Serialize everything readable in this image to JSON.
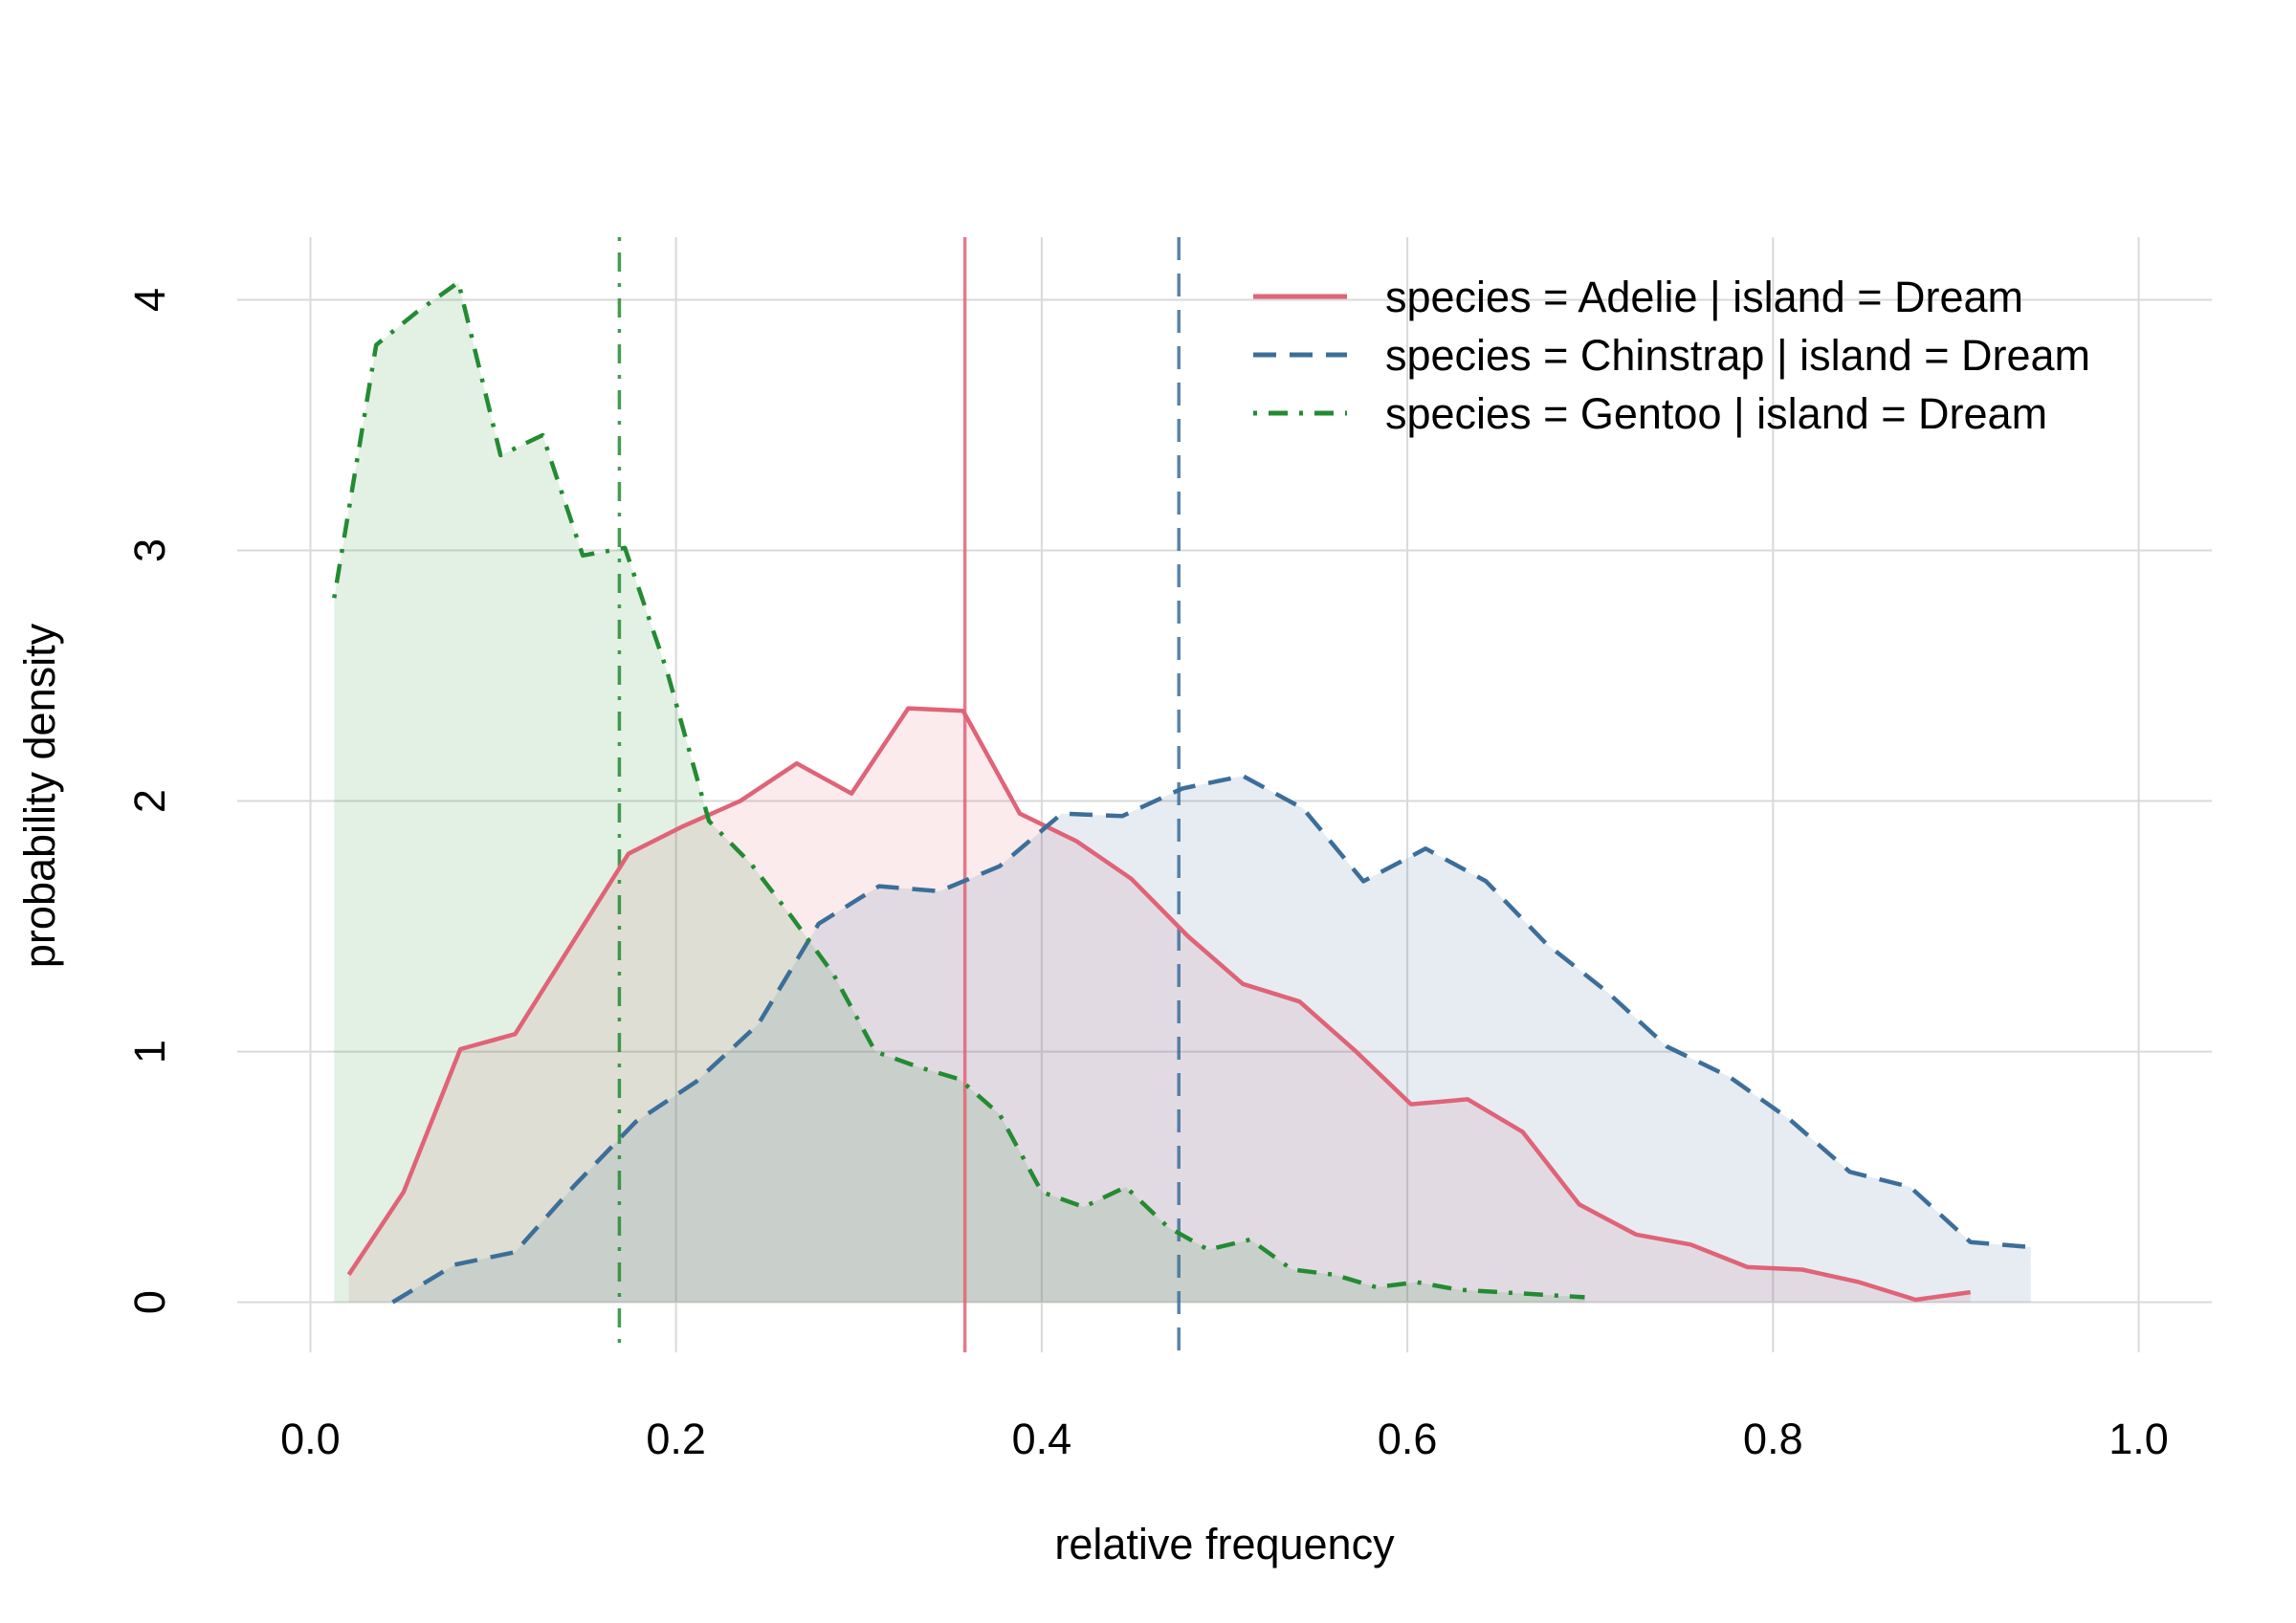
{
  "chart_data": {
    "type": "area",
    "xlabel": "relative frequency",
    "ylabel": "probability density",
    "xlim": [
      -0.04,
      1.04
    ],
    "ylim": [
      -0.2,
      4.25
    ],
    "xticks": [
      0.0,
      0.2,
      0.4,
      0.6,
      0.8,
      1.0
    ],
    "xtick_labels": [
      "0.0",
      "0.2",
      "0.4",
      "0.6",
      "0.8",
      "1.0"
    ],
    "yticks": [
      0,
      1,
      2,
      3,
      4
    ],
    "ytick_labels": [
      "0",
      "1",
      "2",
      "3",
      "4"
    ],
    "grid": true,
    "legend_position": "top-right",
    "series": [
      {
        "name": "species = Adelie | island = Dream",
        "color": "#E06377",
        "line_style": "solid",
        "mean": 0.358,
        "x": [
          0.021,
          0.051,
          0.082,
          0.112,
          0.143,
          0.174,
          0.204,
          0.235,
          0.266,
          0.296,
          0.327,
          0.357,
          0.388,
          0.419,
          0.449,
          0.48,
          0.51,
          0.541,
          0.572,
          0.602,
          0.633,
          0.663,
          0.694,
          0.725,
          0.755,
          0.786,
          0.816,
          0.847,
          0.878,
          0.908
        ],
        "y": [
          0.11,
          0.44,
          1.01,
          1.07,
          1.43,
          1.79,
          1.9,
          2.0,
          2.15,
          2.03,
          2.37,
          2.36,
          1.95,
          1.84,
          1.69,
          1.46,
          1.27,
          1.2,
          1.0,
          0.79,
          0.81,
          0.68,
          0.39,
          0.27,
          0.23,
          0.14,
          0.13,
          0.08,
          0.01,
          0.04
        ]
      },
      {
        "name": "species = Chinstrap | island = Dream",
        "color": "#3C6E9A",
        "line_style": "dashed",
        "mean": 0.475,
        "x": [
          0.045,
          0.079,
          0.112,
          0.145,
          0.178,
          0.211,
          0.245,
          0.278,
          0.311,
          0.344,
          0.377,
          0.411,
          0.444,
          0.477,
          0.51,
          0.543,
          0.576,
          0.61,
          0.643,
          0.676,
          0.709,
          0.742,
          0.776,
          0.809,
          0.842,
          0.875,
          0.908,
          0.941
        ],
        "y": [
          0.0,
          0.15,
          0.2,
          0.47,
          0.72,
          0.88,
          1.11,
          1.51,
          1.66,
          1.64,
          1.74,
          1.95,
          1.94,
          2.05,
          2.1,
          1.97,
          1.68,
          1.81,
          1.68,
          1.43,
          1.24,
          1.02,
          0.9,
          0.73,
          0.52,
          0.46,
          0.24,
          0.22
        ]
      },
      {
        "name": "species = Gentoo | island = Dream",
        "color": "#238B32",
        "line_style": "dotdash",
        "mean": 0.169,
        "x": [
          0.013,
          0.036,
          0.058,
          0.081,
          0.104,
          0.127,
          0.149,
          0.172,
          0.195,
          0.218,
          0.241,
          0.263,
          0.286,
          0.309,
          0.332,
          0.355,
          0.377,
          0.4,
          0.423,
          0.446,
          0.469,
          0.491,
          0.514,
          0.537,
          0.56,
          0.583,
          0.605,
          0.628,
          0.651,
          0.674,
          0.697
        ],
        "y": [
          2.81,
          3.82,
          3.95,
          4.07,
          3.38,
          3.46,
          2.98,
          3.01,
          2.52,
          1.92,
          1.75,
          1.54,
          1.31,
          1.0,
          0.94,
          0.89,
          0.75,
          0.44,
          0.38,
          0.46,
          0.3,
          0.21,
          0.25,
          0.13,
          0.11,
          0.06,
          0.08,
          0.05,
          0.04,
          0.03,
          0.02
        ]
      }
    ]
  }
}
